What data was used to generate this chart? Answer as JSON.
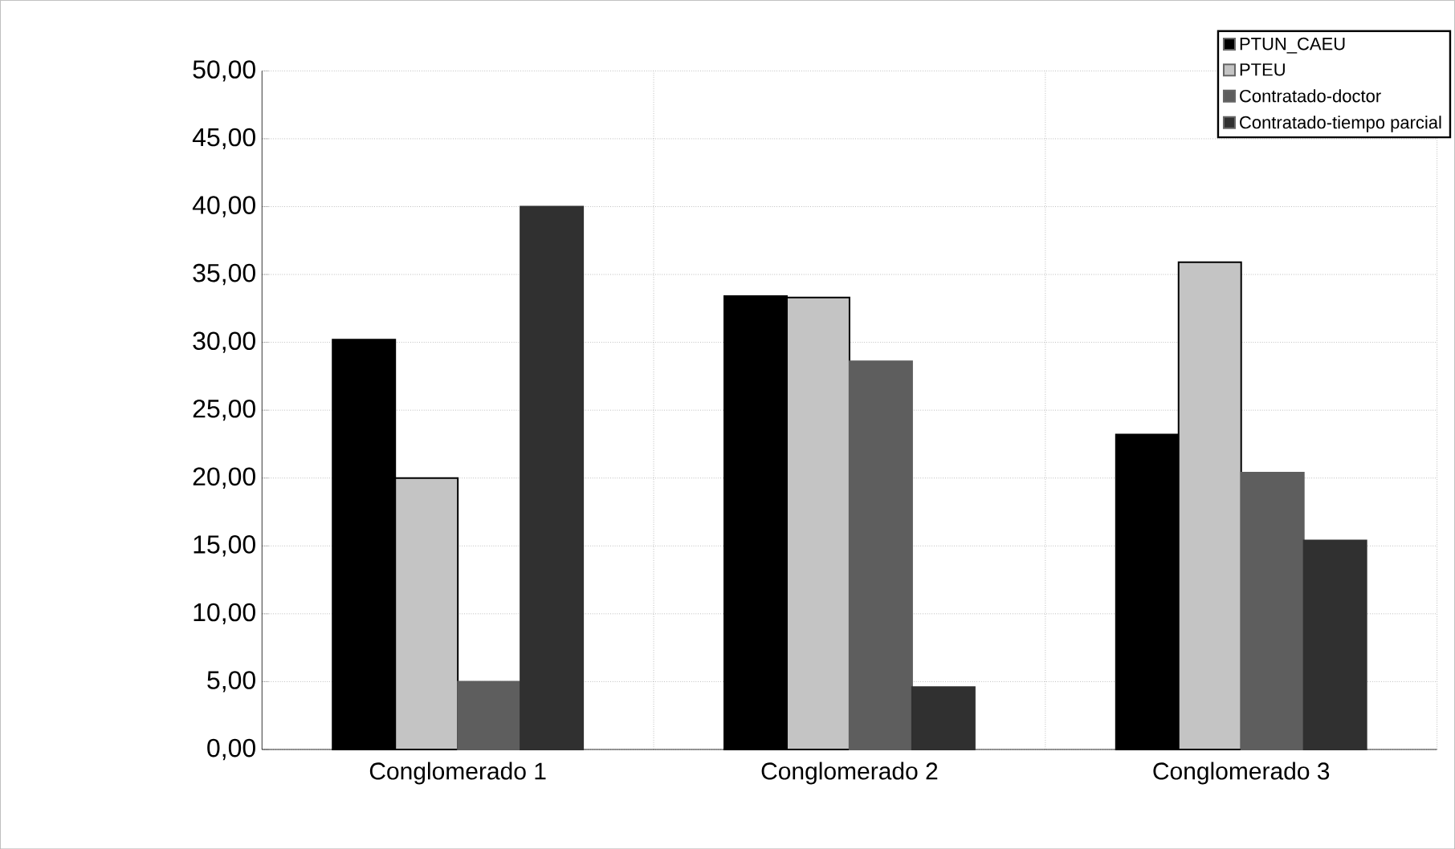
{
  "chart_data": {
    "type": "bar",
    "categories": [
      "Conglomerado 1",
      "Conglomerado 2",
      "Conglomerado 3"
    ],
    "series": [
      {
        "name": "PTUN_CAEU",
        "color": "#000000",
        "values": [
          30.2,
          33.4,
          23.2
        ]
      },
      {
        "name": "PTEU",
        "color": "#c4c4c4",
        "values": [
          20.0,
          33.3,
          35.9
        ]
      },
      {
        "name": "Contratado-doctor",
        "color": "#5e5e5e",
        "values": [
          5.0,
          28.6,
          20.4
        ]
      },
      {
        "name": "Contratado-tiempo parcial",
        "color": "#303030",
        "values": [
          40.0,
          4.6,
          15.4
        ]
      }
    ],
    "ylim": [
      0,
      50
    ],
    "yticks": [
      {
        "value": 0,
        "label": "0,00"
      },
      {
        "value": 5,
        "label": "5,00"
      },
      {
        "value": 10,
        "label": "10,00"
      },
      {
        "value": 15,
        "label": "15,00"
      },
      {
        "value": 20,
        "label": "20,00"
      },
      {
        "value": 25,
        "label": "25,00"
      },
      {
        "value": 30,
        "label": "30,00"
      },
      {
        "value": 35,
        "label": "35,00"
      },
      {
        "value": 40,
        "label": "40,00"
      },
      {
        "value": 45,
        "label": "45,00"
      },
      {
        "value": 50,
        "label": "50,00"
      }
    ],
    "grid": true,
    "legend": "top right"
  }
}
